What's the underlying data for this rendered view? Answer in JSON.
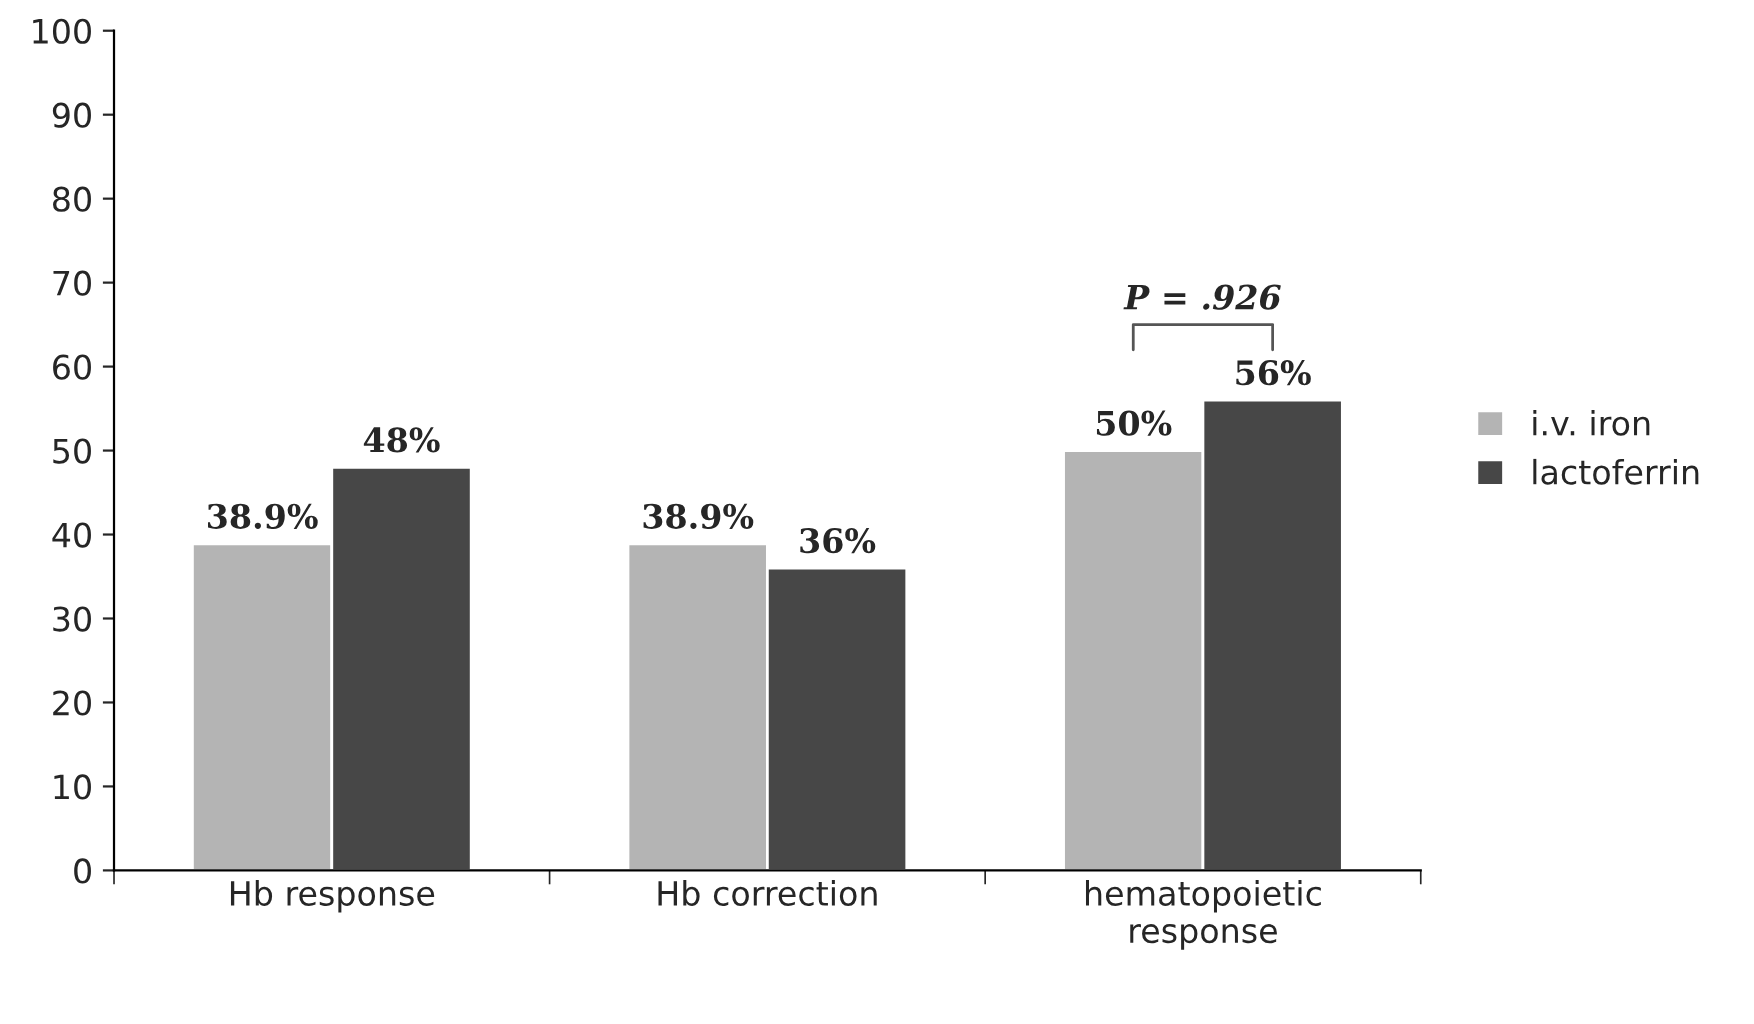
{
  "chart_data": {
    "type": "bar",
    "categories": [
      "Hb response",
      "Hb correction",
      "hematopoietic\nresponse"
    ],
    "series": [
      {
        "name": "i.v. iron",
        "color": "#b4b4b4",
        "values": [
          38.9,
          38.9,
          50
        ],
        "value_labels": [
          "38.9%",
          "38.9%",
          "50%"
        ]
      },
      {
        "name": "lactoferrin",
        "color": "#474747",
        "values": [
          48,
          36,
          56
        ],
        "value_labels": [
          "48%",
          "36%",
          "56%"
        ]
      }
    ],
    "ylim": [
      0,
      100
    ],
    "yticks": [
      0,
      10,
      20,
      30,
      40,
      50,
      60,
      70,
      80,
      90,
      100
    ],
    "annotations": [
      "P = .926"
    ],
    "legend": "right",
    "grid": false
  }
}
